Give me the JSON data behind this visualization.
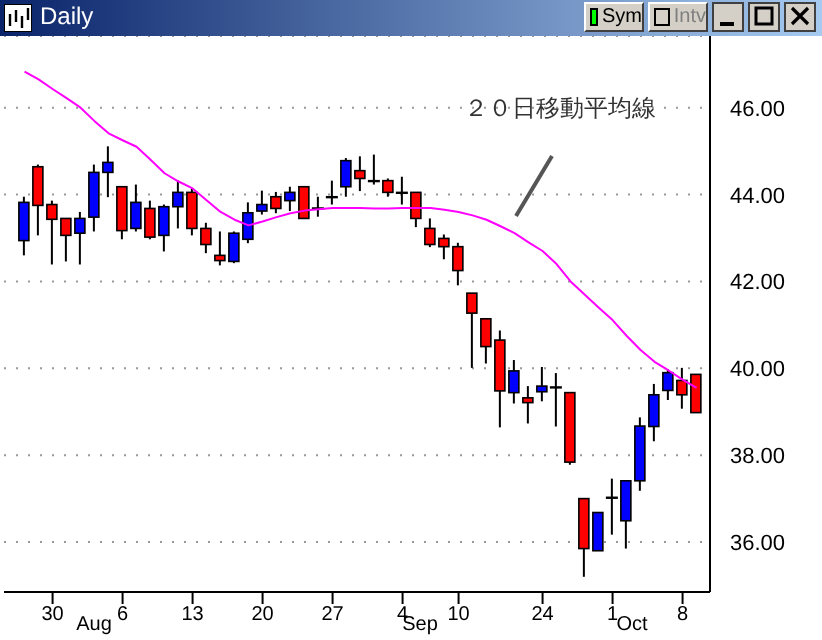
{
  "chart_data": {
    "type": "candlestick",
    "title": "Daily",
    "categories": [
      null,
      null,
      "30",
      null,
      null,
      null,
      null,
      "6",
      null,
      null,
      null,
      null,
      "13",
      null,
      null,
      null,
      null,
      "20",
      null,
      null,
      null,
      null,
      "27",
      null,
      null,
      null,
      null,
      "4",
      null,
      null,
      null,
      "10",
      null,
      null,
      null,
      null,
      null,
      "24",
      null,
      null,
      null,
      null,
      "1",
      null,
      null,
      null,
      null,
      "8",
      null
    ],
    "ohlc": [
      [
        42.94,
        43.95,
        42.6,
        43.82
      ],
      [
        44.64,
        44.69,
        43.06,
        43.75
      ],
      [
        43.77,
        43.86,
        42.39,
        43.43
      ],
      [
        43.45,
        43.45,
        42.46,
        43.06
      ],
      [
        43.11,
        43.6,
        42.39,
        43.45
      ],
      [
        43.48,
        44.69,
        43.15,
        44.51
      ],
      [
        44.51,
        45.11,
        43.94,
        44.74
      ],
      [
        44.18,
        44.18,
        42.97,
        43.17
      ],
      [
        43.22,
        44.23,
        43.15,
        43.82
      ],
      [
        43.68,
        43.86,
        42.97,
        43.02
      ],
      [
        43.06,
        43.77,
        42.69,
        43.72
      ],
      [
        43.72,
        44.32,
        43.22,
        44.05
      ],
      [
        44.05,
        44.14,
        43.06,
        43.22
      ],
      [
        43.22,
        43.35,
        42.65,
        42.85
      ],
      [
        42.6,
        43.15,
        42.37,
        42.48
      ],
      [
        42.46,
        43.15,
        42.42,
        43.11
      ],
      [
        42.97,
        43.82,
        42.88,
        43.58
      ],
      [
        43.62,
        44.09,
        43.54,
        43.77
      ],
      [
        43.95,
        44.06,
        43.57,
        43.68
      ],
      [
        43.86,
        44.18,
        43.62,
        44.05
      ],
      [
        44.18,
        44.18,
        43.45,
        43.45
      ],
      [
        43.68,
        43.95,
        43.49,
        43.68
      ],
      [
        43.94,
        44.32,
        43.77,
        43.94
      ],
      [
        44.18,
        44.84,
        43.95,
        44.78
      ],
      [
        44.55,
        44.88,
        44.08,
        44.37
      ],
      [
        44.31,
        44.92,
        44.23,
        44.31
      ],
      [
        44.32,
        44.37,
        43.95,
        44.05
      ],
      [
        44.04,
        44.41,
        43.77,
        44.04
      ],
      [
        44.05,
        44.05,
        43.25,
        43.45
      ],
      [
        43.22,
        43.45,
        42.79,
        42.85
      ],
      [
        42.99,
        43.08,
        42.51,
        42.8
      ],
      [
        42.8,
        42.89,
        41.91,
        42.25
      ],
      [
        41.73,
        41.73,
        40.01,
        41.27
      ],
      [
        41.14,
        41.14,
        40.11,
        40.5
      ],
      [
        40.65,
        40.87,
        38.64,
        39.48
      ],
      [
        39.44,
        40.19,
        39.19,
        39.94
      ],
      [
        39.32,
        39.59,
        38.73,
        39.21
      ],
      [
        39.46,
        40.03,
        39.24,
        39.59
      ],
      [
        39.56,
        39.89,
        38.66,
        39.56
      ],
      [
        39.44,
        39.44,
        37.78,
        37.84
      ],
      [
        37.0,
        37.0,
        35.2,
        35.85
      ],
      [
        35.8,
        36.68,
        35.8,
        36.68
      ],
      [
        37.02,
        37.46,
        36.17,
        37.02
      ],
      [
        36.49,
        37.41,
        35.85,
        37.41
      ],
      [
        37.41,
        38.87,
        37.18,
        38.67
      ],
      [
        38.66,
        39.64,
        38.32,
        39.39
      ],
      [
        39.49,
        39.98,
        39.27,
        39.9
      ],
      [
        39.72,
        40.01,
        39.07,
        39.39
      ],
      [
        39.86,
        39.86,
        38.98,
        38.98
      ]
    ],
    "colors": [
      "#0000ff",
      "#ff0000",
      "#ff0000",
      "#ff0000",
      "#0000ff",
      "#0000ff",
      "#0000ff",
      "#ff0000",
      "#0000ff",
      "#ff0000",
      "#0000ff",
      "#0000ff",
      "#ff0000",
      "#ff0000",
      "#ff0000",
      "#0000ff",
      "#0000ff",
      "#0000ff",
      "#ff0000",
      "#0000ff",
      "#ff0000",
      "#000000",
      "#000000",
      "#0000ff",
      "#ff0000",
      "#000000",
      "#ff0000",
      "#000000",
      "#ff0000",
      "#ff0000",
      "#ff0000",
      "#ff0000",
      "#ff0000",
      "#ff0000",
      "#ff0000",
      "#0000ff",
      "#ff0000",
      "#0000ff",
      "#000000",
      "#ff0000",
      "#ff0000",
      "#0000ff",
      "#000000",
      "#0000ff",
      "#0000ff",
      "#0000ff",
      "#0000ff",
      "#ff0000",
      "#ff0000"
    ],
    "series": [
      {
        "type": "line",
        "name": "２０日移動平均線",
        "color": "#ff00ff",
        "values": [
          46.83,
          46.65,
          46.43,
          46.22,
          46.0,
          45.69,
          45.41,
          45.25,
          45.1,
          44.8,
          44.49,
          44.3,
          44.14,
          43.87,
          43.6,
          43.42,
          43.29,
          43.38,
          43.48,
          43.57,
          43.63,
          43.66,
          43.69,
          43.69,
          43.69,
          43.68,
          43.68,
          43.69,
          43.69,
          43.69,
          43.65,
          43.6,
          43.52,
          43.42,
          43.27,
          43.11,
          42.9,
          42.7,
          42.4,
          42.0,
          41.7,
          41.4,
          41.11,
          40.75,
          40.42,
          40.15,
          39.95,
          39.74,
          39.55
        ]
      }
    ],
    "ylim": [
      34.85,
      47.65
    ],
    "yticks": [
      {
        "value": 36,
        "label": "36.00"
      },
      {
        "value": 38,
        "label": "38.00"
      },
      {
        "value": 40,
        "label": "40.00"
      },
      {
        "value": 42,
        "label": "42.00"
      },
      {
        "value": 44,
        "label": "44.00"
      },
      {
        "value": 46,
        "label": "46.00"
      }
    ],
    "grid": "y",
    "annotations": [
      "Sym",
      "Intv",
      "Aug",
      "Sep",
      "Oct"
    ]
  }
}
